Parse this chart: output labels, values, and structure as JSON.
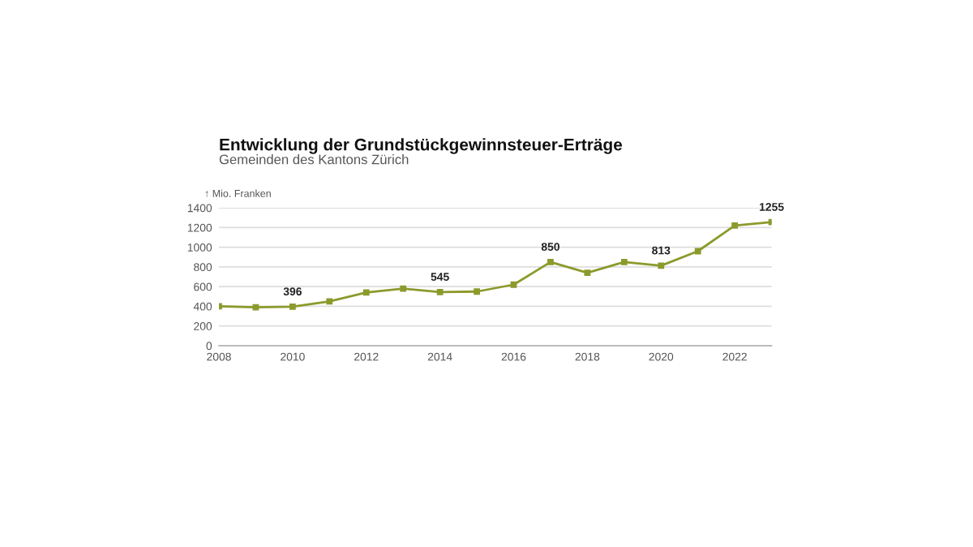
{
  "chart_data": {
    "type": "line",
    "title": "Entwicklung der Grundstückgewinnsteuer-Erträge",
    "subtitle": "Gemeinden des Kantons Zürich",
    "ylabel": "↑ Mio. Franken",
    "x": [
      2008,
      2009,
      2010,
      2011,
      2012,
      2013,
      2014,
      2015,
      2016,
      2017,
      2018,
      2019,
      2020,
      2021,
      2022,
      2023
    ],
    "series": [
      {
        "color": "#8c9a2c",
        "values": [
          400,
          390,
          396,
          450,
          540,
          580,
          545,
          550,
          620,
          850,
          740,
          850,
          813,
          960,
          1220,
          1255
        ]
      }
    ],
    "annotations": [
      {
        "text": "396",
        "x": 2010,
        "y": 396
      },
      {
        "text": "545",
        "x": 2014,
        "y": 545
      },
      {
        "text": "850",
        "x": 2017,
        "y": 850
      },
      {
        "text": "813",
        "x": 2020,
        "y": 813
      },
      {
        "text": "1255",
        "x": 2023,
        "y": 1255
      }
    ],
    "xlim": [
      2008,
      2023
    ],
    "xticks": [
      2008,
      2010,
      2012,
      2014,
      2016,
      2018,
      2020,
      2022
    ],
    "ylim": [
      0,
      1400
    ],
    "yticks": [
      0,
      200,
      400,
      600,
      800,
      1000,
      1200,
      1400
    ],
    "grid": "y",
    "marker": "square",
    "line_style": "solid"
  }
}
